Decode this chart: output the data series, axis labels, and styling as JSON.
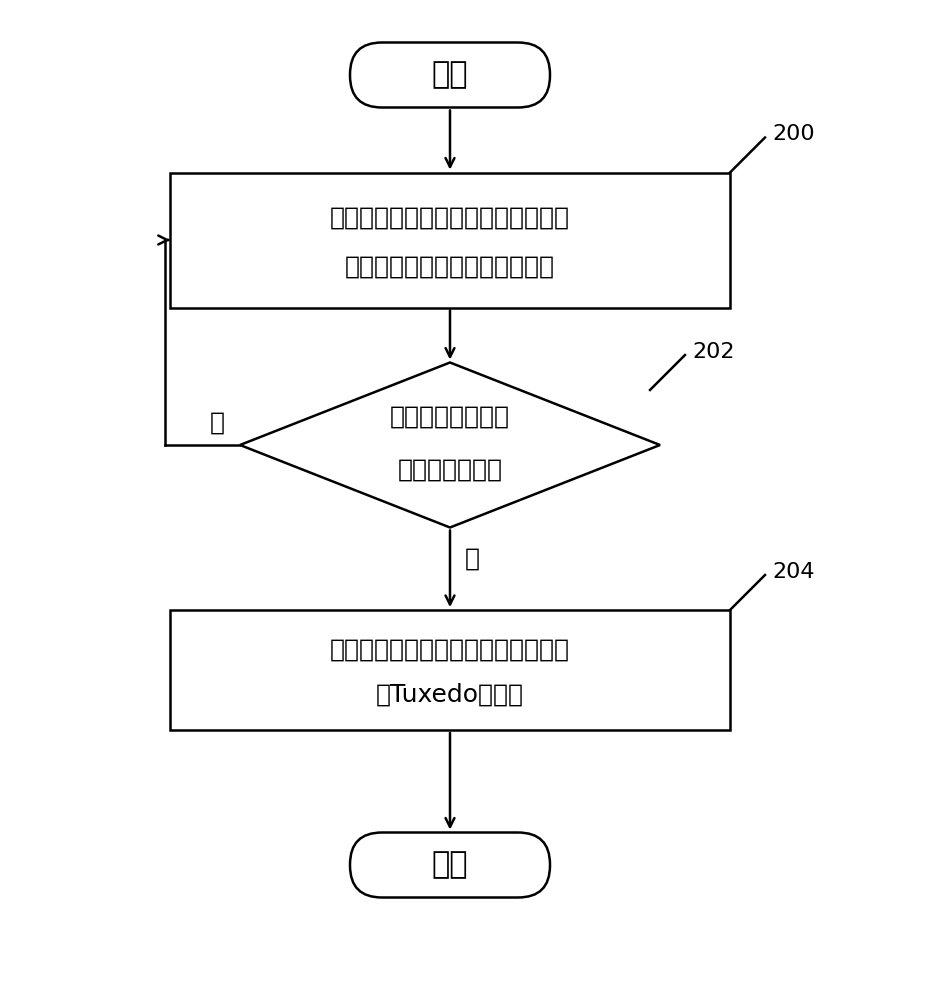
{
  "bg_color": "#ffffff",
  "line_color": "#000000",
  "text_color": "#000000",
  "font_size_main": 18,
  "font_size_label": 16,
  "font_size_ref": 16,
  "start_end_text": [
    "开始",
    "结束"
  ],
  "box200_lines": [
    "周期性地探测生产主机的工作状态，",
    "并将探测结果记录在探测日志中"
  ],
  "diamond202_lines": [
    "根据探测结果判断",
    "是否存在异常？"
  ],
  "box204_lines": [
    "隔离异常生产主机，并启动应急主机",
    "的Tuxedo域配置"
  ],
  "ref_labels": [
    "200",
    "202",
    "204"
  ],
  "no_label": "否",
  "yes_label": "是"
}
